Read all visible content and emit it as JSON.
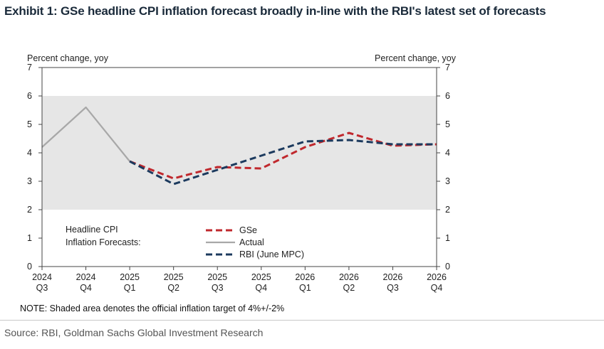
{
  "title": "Exhibit 1: GSe headline CPI inflation forecast broadly in-line with the RBI's latest set of forecasts",
  "source": "Source: RBI, Goldman Sachs Global Investment Research",
  "chart_data": {
    "type": "line",
    "categories": [
      "2024 Q3",
      "2024 Q4",
      "2025 Q1",
      "2025 Q2",
      "2025 Q3",
      "2025 Q4",
      "2026 Q1",
      "2026 Q2",
      "2026 Q3",
      "2026 Q4"
    ],
    "category_lines": [
      [
        "2024",
        "Q3"
      ],
      [
        "2024",
        "Q4"
      ],
      [
        "2025",
        "Q1"
      ],
      [
        "2025",
        "Q2"
      ],
      [
        "2025",
        "Q3"
      ],
      [
        "2025",
        "Q4"
      ],
      [
        "2026",
        "Q1"
      ],
      [
        "2026",
        "Q2"
      ],
      [
        "2026",
        "Q3"
      ],
      [
        "2026",
        "Q4"
      ]
    ],
    "ylabel_left": "Percent change, yoy",
    "ylabel_right": "Percent change, yoy",
    "ylim": [
      0,
      7
    ],
    "yticks": [
      0,
      1,
      2,
      3,
      4,
      5,
      6,
      7
    ],
    "shaded_band": [
      2,
      6
    ],
    "legend_title": [
      "Headline CPI",
      "Inflation Forecasts:"
    ],
    "series": [
      {
        "name": "GSe",
        "color": "#c0282d",
        "dash": true,
        "values": [
          null,
          null,
          3.7,
          3.1,
          3.5,
          3.45,
          4.2,
          4.7,
          4.25,
          4.3
        ]
      },
      {
        "name": "Actual",
        "color": "#a8a8a8",
        "dash": false,
        "values": [
          4.2,
          5.6,
          3.7,
          null,
          null,
          null,
          null,
          null,
          null,
          null
        ]
      },
      {
        "name": "RBI (June MPC)",
        "color": "#1c3a5e",
        "dash": true,
        "values": [
          null,
          null,
          3.7,
          2.9,
          3.4,
          3.9,
          4.4,
          4.45,
          4.3,
          4.3
        ]
      }
    ],
    "note": "NOTE: Shaded area denotes the official inflation target of 4%+/-2%"
  }
}
